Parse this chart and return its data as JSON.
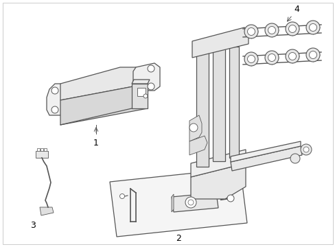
{
  "background_color": "#ffffff",
  "border_color": "#cccccc",
  "line_color": "#555555",
  "label_color": "#000000",
  "figsize": [
    4.89,
    3.6
  ],
  "dpi": 100
}
